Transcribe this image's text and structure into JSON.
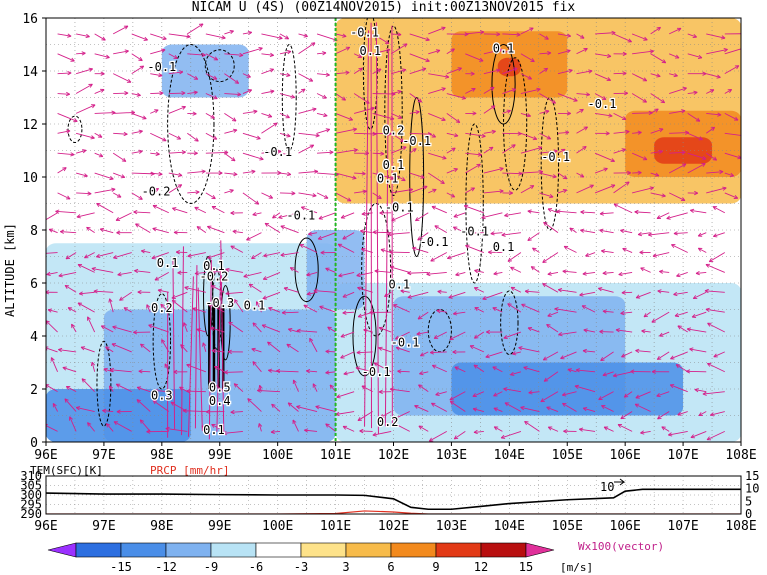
{
  "title": "NICAM U (4S) (00Z14NOV2015) init:00Z13NOV2015 fix",
  "main_panel": {
    "ylabel": "ALTITUDE [km]",
    "yticks": [
      "0",
      "2",
      "4",
      "6",
      "8",
      "10",
      "12",
      "14",
      "16"
    ],
    "xticks": [
      "96E",
      "97E",
      "98E",
      "99E",
      "100E",
      "101E",
      "102E",
      "103E",
      "104E",
      "105E",
      "106E",
      "107E",
      "108E"
    ]
  },
  "contour_labels": [
    "-0.1",
    "0.1",
    "-0.1",
    "0.1",
    "-0.1",
    "-0.1",
    "-0.1",
    "0.2",
    "0.1",
    "-0.1",
    "-0.2",
    "-0.1",
    "-0.1",
    "-0.1",
    "0.1",
    "-0.1",
    "0.1",
    "0.1",
    "-0.2",
    "-0.3",
    "0.2",
    "0.1",
    "0.1",
    "-0.1",
    "0.5",
    "0.4",
    "0.3",
    "0.1",
    "-0.1",
    "0.2",
    "0.1"
  ],
  "bottom_panel": {
    "left_label": "TEM(SFC)[K]",
    "right_label": "PRCP [mm/hr]",
    "yticks_left": [
      "310",
      "305",
      "300",
      "295",
      "290"
    ],
    "yticks_right": [
      "15",
      "10",
      "5",
      "0"
    ],
    "marker_label": "10",
    "xticks": [
      "96E",
      "97E",
      "98E",
      "99E",
      "100E",
      "101E",
      "102E",
      "103E",
      "104E",
      "105E",
      "106E",
      "107E",
      "108E"
    ]
  },
  "colorbar": {
    "ticks": [
      "-15",
      "-12",
      "-9",
      "-6",
      "-3",
      "3",
      "6",
      "9",
      "12",
      "15"
    ],
    "unit": "[m/s]",
    "vector_label": "Wx100(vector)",
    "colors": [
      "#9b30ff",
      "#2d6fe0",
      "#4a8ee8",
      "#7fb2f0",
      "#b8e3f5",
      "#ffffff",
      "#fde28a",
      "#f7bb4a",
      "#f28a1e",
      "#e23a16",
      "#b80f0f",
      "#e0309a"
    ]
  },
  "colors": {
    "vector": "#d4208a",
    "marker_line": "#22b822",
    "temperature": "#000000",
    "precipitation": "#e03020"
  },
  "chart_data": [
    {
      "type": "heatmap",
      "title": "NICAM U (4S) (00Z14NOV2015) init:00Z13NOV2015 fix",
      "xlabel": "",
      "ylabel": "ALTITUDE [km]",
      "xlim": [
        96,
        108
      ],
      "ylim": [
        0,
        16
      ],
      "x_ticks": [
        "96E",
        "97E",
        "98E",
        "99E",
        "100E",
        "101E",
        "102E",
        "103E",
        "104E",
        "105E",
        "106E",
        "107E",
        "108E"
      ],
      "grid": true,
      "colorbar_levels": [
        -15,
        -12,
        -9,
        -6,
        -3,
        3,
        6,
        9,
        12,
        15
      ],
      "colorbar_unit": "[m/s]",
      "marker_longitude": 101,
      "regions": [
        {
          "x": [
            96,
            101
          ],
          "z": [
            0,
            7.5
          ],
          "u": -3
        },
        {
          "x": [
            97,
            101
          ],
          "z": [
            0,
            5
          ],
          "u": -6
        },
        {
          "x": [
            96,
            98.5
          ],
          "z": [
            0,
            2
          ],
          "u": -9
        },
        {
          "x": [
            101,
            108
          ],
          "z": [
            0,
            6
          ],
          "u": -3
        },
        {
          "x": [
            102,
            106
          ],
          "z": [
            1,
            5.5
          ],
          "u": -6
        },
        {
          "x": [
            103,
            107
          ],
          "z": [
            1,
            3
          ],
          "u": -9
        },
        {
          "x": [
            100.5,
            101.5
          ],
          "z": [
            5,
            8
          ],
          "u": -6
        },
        {
          "x": [
            101,
            108
          ],
          "z": [
            9,
            16
          ],
          "u": 3
        },
        {
          "x": [
            103,
            105
          ],
          "z": [
            13,
            15.5
          ],
          "u": 6
        },
        {
          "x": [
            103.8,
            104.2
          ],
          "z": [
            13.8,
            14.5
          ],
          "u": 9
        },
        {
          "x": [
            106,
            108
          ],
          "z": [
            10,
            12.5
          ],
          "u": 6
        },
        {
          "x": [
            106.5,
            107.5
          ],
          "z": [
            10.5,
            11.5
          ],
          "u": 9
        },
        {
          "x": [
            98,
            99.5
          ],
          "z": [
            13,
            15
          ],
          "u": -6
        }
      ]
    },
    {
      "type": "line",
      "xlabel": "",
      "ylabel": "TEM(SFC)[K]",
      "xlim": [
        96,
        108
      ],
      "ylim": [
        290,
        310
      ],
      "series": [
        {
          "name": "TEM(SFC)[K]",
          "x": [
            96,
            97,
            98,
            99,
            100,
            101,
            101.5,
            102,
            102.3,
            102.6,
            103,
            103.5,
            104,
            105,
            105.8,
            106,
            106.3,
            107,
            108
          ],
          "values": [
            301,
            300.5,
            300.5,
            300.2,
            300,
            300,
            299.8,
            298,
            293.5,
            292.5,
            292.5,
            294,
            295.5,
            297.5,
            298.5,
            302,
            303,
            303,
            303
          ]
        },
        {
          "name": "PRCP [mm/hr]",
          "x": [
            96,
            100,
            101,
            101.5,
            102,
            102.3,
            102.6,
            103,
            104,
            106,
            108
          ],
          "values": [
            0,
            0,
            0.2,
            1.2,
            0.8,
            0.3,
            0,
            0,
            0,
            0,
            0
          ]
        }
      ],
      "y2lim": [
        0,
        15
      ]
    }
  ]
}
